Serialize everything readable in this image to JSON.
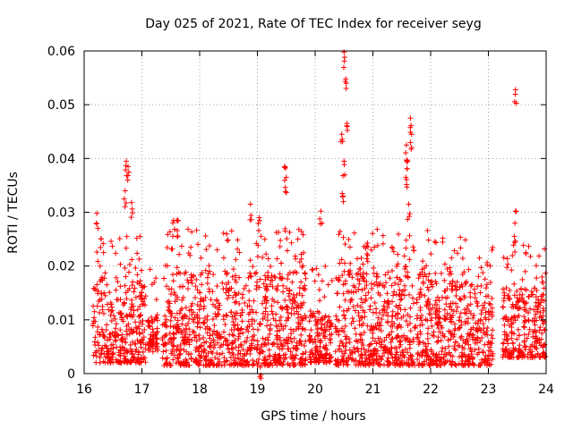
{
  "chart_data": {
    "type": "scatter",
    "title": "Day 025 of 2021, Rate Of TEC Index for receiver seyg",
    "xlabel": "GPS time / hours",
    "ylabel": "ROTI / TECUs",
    "xlim": [
      16,
      24
    ],
    "ylim": [
      0,
      0.06
    ],
    "x_ticks": [
      "16",
      "17",
      "18",
      "19",
      "20",
      "21",
      "22",
      "23",
      "24"
    ],
    "y_ticks": [
      "0",
      "0.01",
      "0.02",
      "0.03",
      "0.04",
      "0.05",
      "0.06"
    ],
    "grid": true,
    "marker": "+",
    "color": "#ff0000",
    "series": [
      {
        "name": "ROTI",
        "notable_points": [
          {
            "x": 16.22,
            "y": 0.0298
          },
          {
            "x": 16.73,
            "y": 0.0395
          },
          {
            "x": 16.76,
            "y": 0.0385
          },
          {
            "x": 16.71,
            "y": 0.034
          },
          {
            "x": 16.82,
            "y": 0.0318
          },
          {
            "x": 17.55,
            "y": 0.0285
          },
          {
            "x": 17.62,
            "y": 0.0285
          },
          {
            "x": 18.88,
            "y": 0.0315
          },
          {
            "x": 19.03,
            "y": 0.029
          },
          {
            "x": 19.47,
            "y": 0.0385
          },
          {
            "x": 19.5,
            "y": 0.0365
          },
          {
            "x": 20.1,
            "y": 0.0302
          },
          {
            "x": 20.5,
            "y": 0.0598
          },
          {
            "x": 20.53,
            "y": 0.0548
          },
          {
            "x": 20.55,
            "y": 0.0465
          },
          {
            "x": 20.46,
            "y": 0.0445
          },
          {
            "x": 20.5,
            "y": 0.0395
          },
          {
            "x": 20.47,
            "y": 0.0335
          },
          {
            "x": 21.65,
            "y": 0.0475
          },
          {
            "x": 21.67,
            "y": 0.0445
          },
          {
            "x": 21.58,
            "y": 0.0425
          },
          {
            "x": 21.6,
            "y": 0.0395
          },
          {
            "x": 21.57,
            "y": 0.0365
          },
          {
            "x": 21.62,
            "y": 0.0315
          },
          {
            "x": 23.47,
            "y": 0.0528
          },
          {
            "x": 23.47,
            "y": 0.0302
          },
          {
            "x": 23.45,
            "y": 0.0255
          },
          {
            "x": 19.05,
            "y": 0.0012
          }
        ],
        "dense_band": [
          {
            "x_start": 16.15,
            "x_end": 17.07,
            "y_low": 0.002,
            "y_high": 0.018
          },
          {
            "x_start": 17.1,
            "x_end": 17.27,
            "y_low": 0.004,
            "y_high": 0.012
          },
          {
            "x_start": 17.35,
            "x_end": 19.85,
            "y_low": 0.0015,
            "y_high": 0.019
          },
          {
            "x_start": 19.9,
            "x_end": 20.3,
            "y_low": 0.002,
            "y_high": 0.012
          },
          {
            "x_start": 20.35,
            "x_end": 23.08,
            "y_low": 0.0015,
            "y_high": 0.019
          },
          {
            "x_start": 23.25,
            "x_end": 24.0,
            "y_low": 0.003,
            "y_high": 0.016
          }
        ]
      }
    ]
  }
}
